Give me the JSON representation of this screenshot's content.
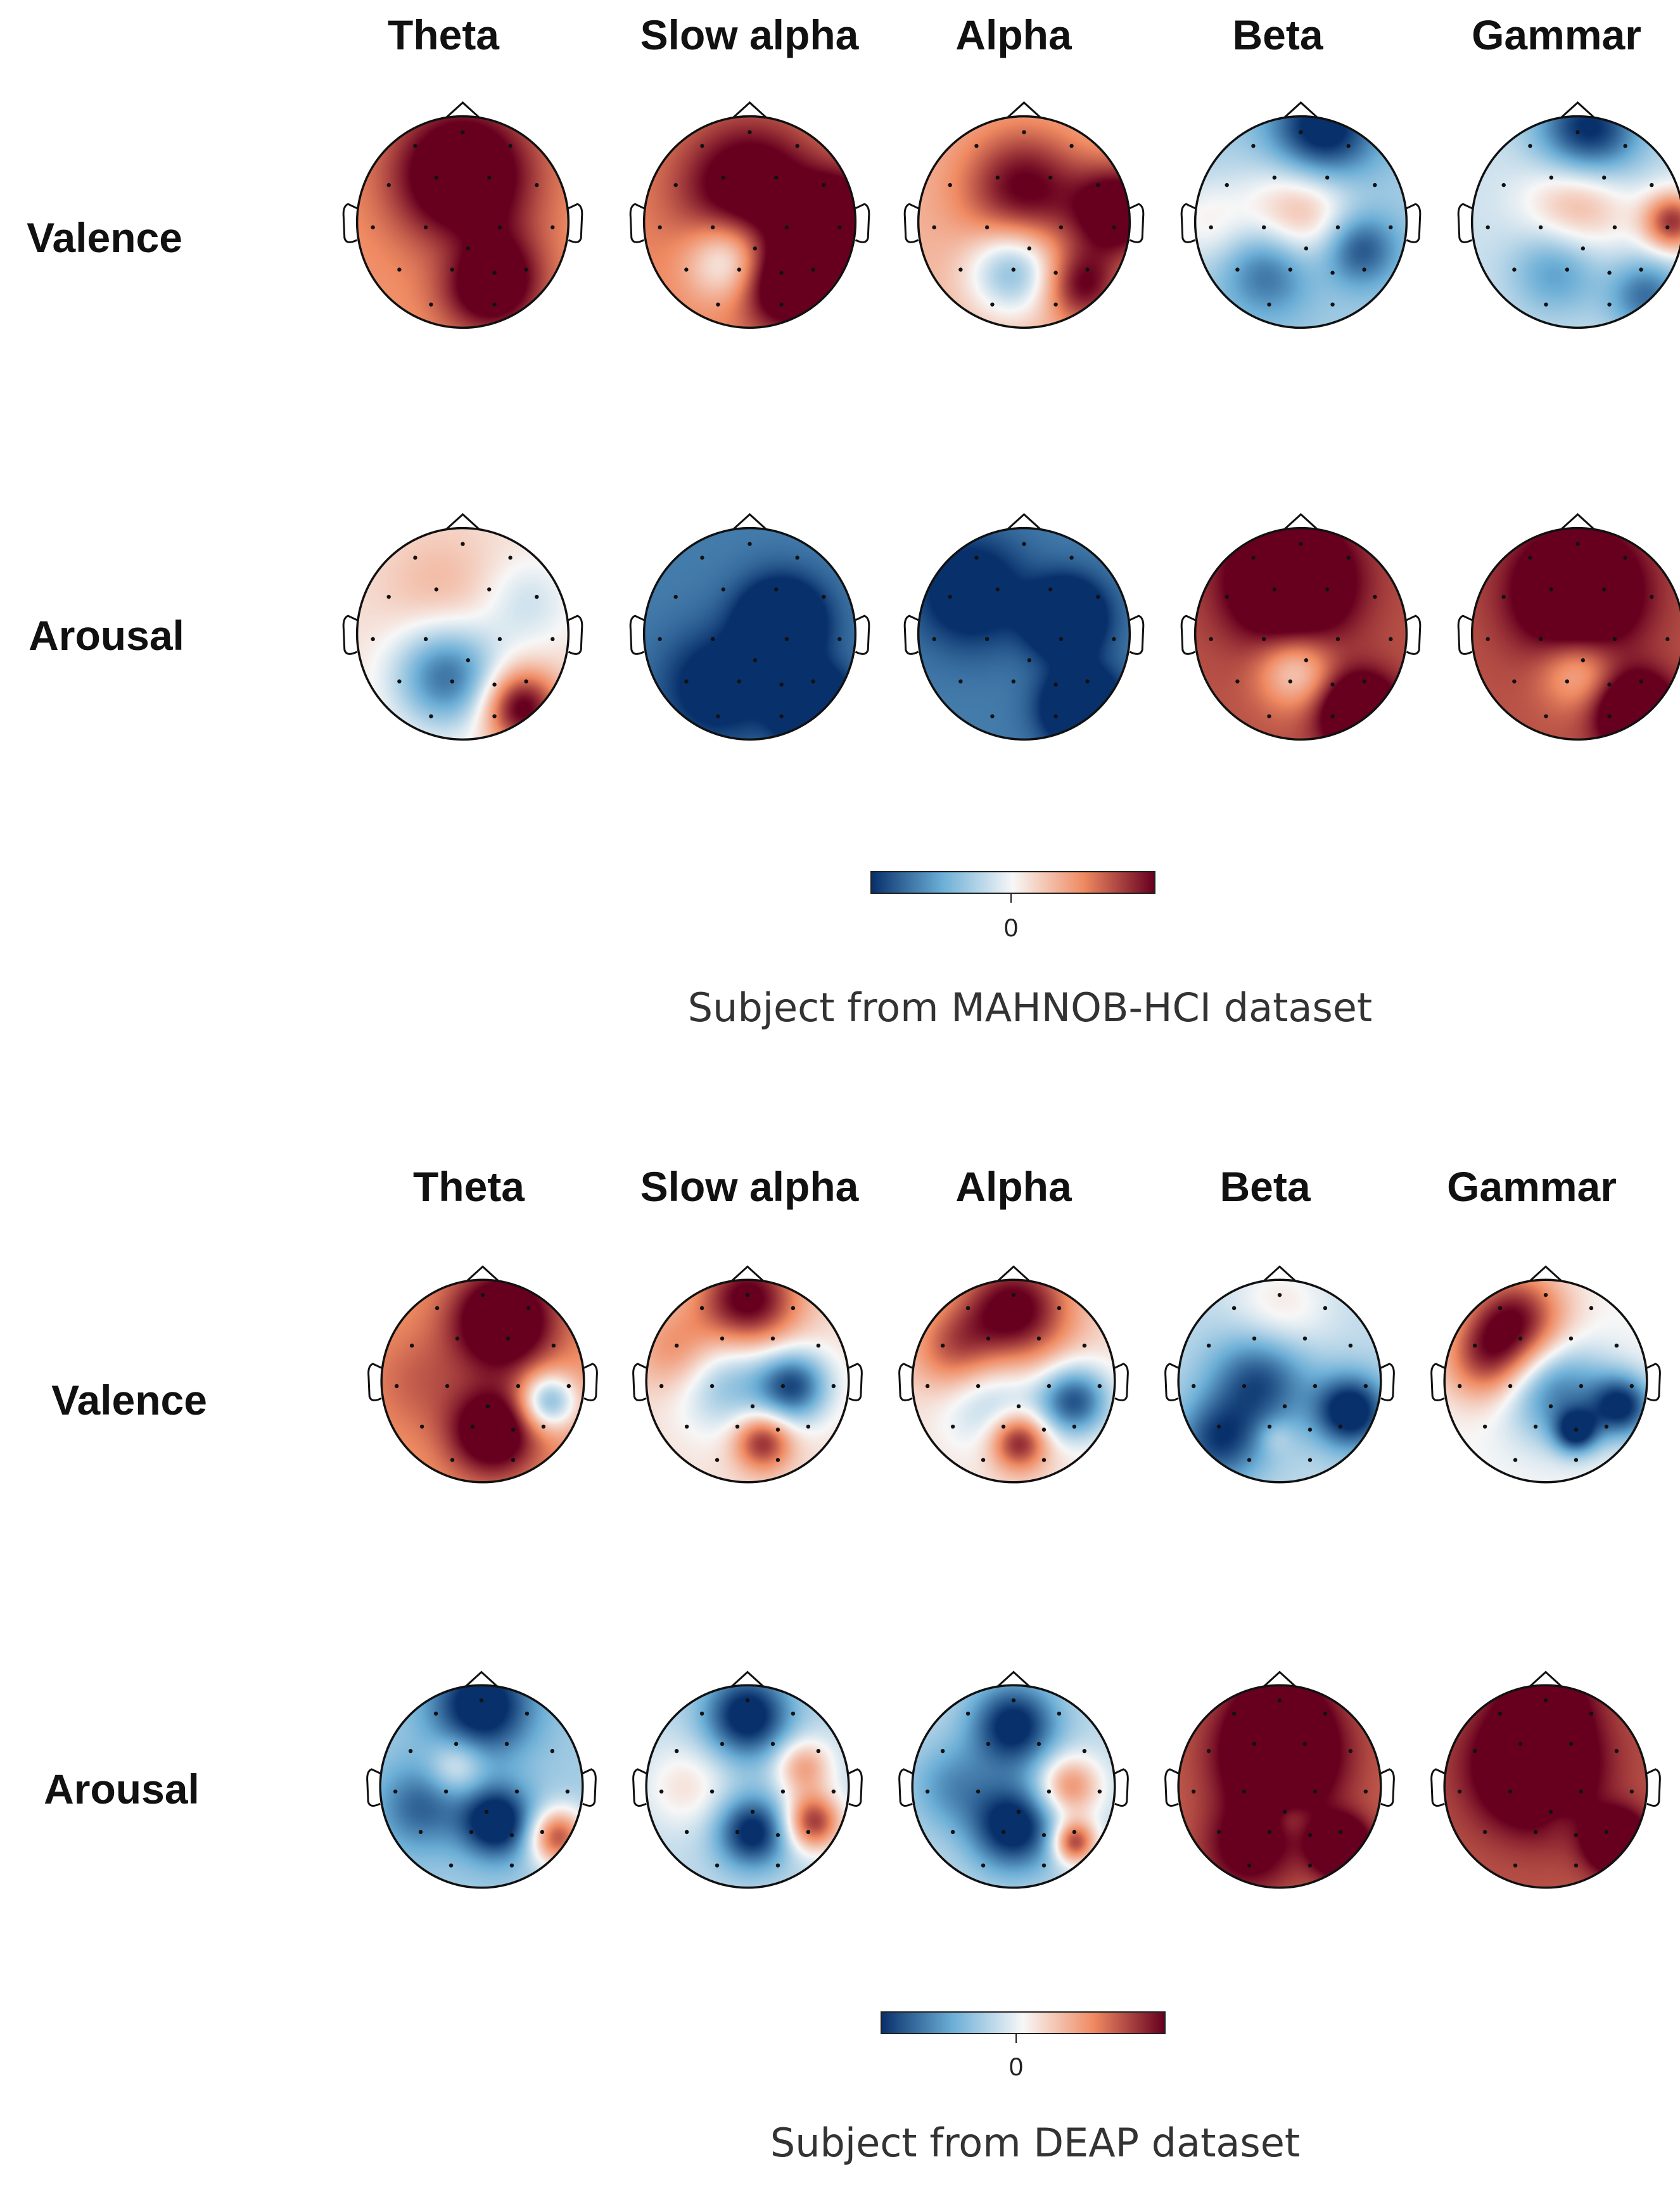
{
  "colormap": {
    "negative": "#08306b",
    "mid_neg": "#6baed6",
    "zero": "#f7f7f7",
    "mid_pos": "#ef8a62",
    "positive": "#67001f"
  },
  "panels": [
    {
      "bands": [
        "Theta",
        "Slow alpha",
        "Alpha",
        "Beta",
        "Gammar"
      ],
      "rows": [
        {
          "label": "Valence",
          "maps": [
            {
              "base": 0.45,
              "blobs": [
                [
                  0.0,
                  -0.45,
                  0.45,
                  1.0
                ],
                [
                  0.25,
                  0.55,
                  0.32,
                  1.0
                ],
                [
                  0.05,
                  0.35,
                  0.28,
                  -0.25
                ]
              ]
            },
            {
              "base": 0.5,
              "blobs": [
                [
                  0.0,
                  -0.3,
                  0.45,
                  0.8
                ],
                [
                  0.85,
                  0.0,
                  0.3,
                  1.0
                ],
                [
                  -0.2,
                  0.35,
                  0.28,
                  -0.7
                ],
                [
                  0.35,
                  0.6,
                  0.3,
                  0.9
                ]
              ]
            },
            {
              "base": 0.3,
              "blobs": [
                [
                  0.0,
                  -0.3,
                  0.4,
                  0.75
                ],
                [
                  -0.1,
                  0.45,
                  0.3,
                  -0.75
                ],
                [
                  0.9,
                  -0.1,
                  0.3,
                  1.0
                ],
                [
                  0.55,
                  0.6,
                  0.25,
                  0.7
                ]
              ]
            },
            {
              "base": -0.3,
              "blobs": [
                [
                  0.0,
                  -0.1,
                  0.38,
                  0.65
                ],
                [
                  0.2,
                  -0.85,
                  0.35,
                  -0.9
                ],
                [
                  -0.3,
                  0.45,
                  0.3,
                  -0.55
                ],
                [
                  0.55,
                  0.25,
                  0.25,
                  -0.65
                ],
                [
                  -0.9,
                  0.0,
                  0.3,
                  0.3
                ]
              ]
            },
            {
              "base": -0.15,
              "blobs": [
                [
                  0.0,
                  -0.2,
                  0.35,
                  0.55
                ],
                [
                  0.1,
                  -0.85,
                  0.35,
                  -0.95
                ],
                [
                  -0.2,
                  0.45,
                  0.3,
                  -0.45
                ],
                [
                  0.9,
                  0.0,
                  0.2,
                  0.95
                ],
                [
                  0.65,
                  0.7,
                  0.25,
                  -0.6
                ]
              ]
            }
          ]
        },
        {
          "label": "Arousal",
          "maps": [
            {
              "base": 0.1,
              "blobs": [
                [
                  -0.15,
                  0.4,
                  0.35,
                  -0.85
                ],
                [
                  0.55,
                  0.7,
                  0.25,
                  1.0
                ],
                [
                  0.6,
                  -0.3,
                  0.3,
                  -0.25
                ],
                [
                  -0.2,
                  -0.4,
                  0.4,
                  0.2
                ]
              ]
            },
            {
              "base": -0.7,
              "blobs": [
                [
                  0.3,
                  -0.1,
                  0.28,
                  -0.95
                ],
                [
                  0.6,
                  0.7,
                  0.25,
                  -1.0
                ],
                [
                  -0.3,
                  0.5,
                  0.35,
                  -0.5
                ]
              ]
            },
            {
              "base": -0.7,
              "blobs": [
                [
                  0.4,
                  -0.15,
                  0.25,
                  -0.95
                ],
                [
                  0.55,
                  0.7,
                  0.25,
                  -1.0
                ],
                [
                  -0.5,
                  -0.4,
                  0.35,
                  -0.55
                ]
              ]
            },
            {
              "base": 0.7,
              "blobs": [
                [
                  -0.1,
                  -0.5,
                  0.4,
                  1.0
                ],
                [
                  -0.05,
                  0.35,
                  0.25,
                  -0.55
                ],
                [
                  0.55,
                  0.75,
                  0.25,
                  1.0
                ]
              ]
            },
            {
              "base": 0.7,
              "blobs": [
                [
                  0.0,
                  -0.4,
                  0.4,
                  1.0
                ],
                [
                  0.0,
                  0.35,
                  0.25,
                  -0.45
                ],
                [
                  0.55,
                  0.75,
                  0.25,
                  1.0
                ]
              ]
            }
          ]
        }
      ],
      "colorbar_tick": "0",
      "caption": "Subject from MAHNOB-HCI dataset"
    },
    {
      "bands": [
        "Theta",
        "Slow alpha",
        "Alpha",
        "Beta",
        "Gammar"
      ],
      "rows": [
        {
          "label": "Valence",
          "maps": [
            {
              "base": 0.45,
              "blobs": [
                [
                  0.2,
                  -0.6,
                  0.35,
                  1.0
                ],
                [
                  0.1,
                  0.5,
                  0.3,
                  0.9
                ],
                [
                  0.65,
                  0.2,
                  0.2,
                  -0.9
                ],
                [
                  -0.6,
                  0.0,
                  0.35,
                  0.2
                ]
              ]
            },
            {
              "base": 0.1,
              "blobs": [
                [
                  0.0,
                  -0.8,
                  0.35,
                  1.0
                ],
                [
                  -0.2,
                  0.0,
                  0.35,
                  -0.5
                ],
                [
                  0.45,
                  0.05,
                  0.25,
                  -0.95
                ],
                [
                  0.15,
                  0.6,
                  0.2,
                  0.8
                ],
                [
                  -0.7,
                  -0.3,
                  0.3,
                  0.4
                ]
              ]
            },
            {
              "base": 0.1,
              "blobs": [
                [
                  0.0,
                  -0.7,
                  0.4,
                  1.0
                ],
                [
                  -0.2,
                  0.2,
                  0.35,
                  -0.4
                ],
                [
                  0.6,
                  0.2,
                  0.25,
                  -0.95
                ],
                [
                  0.05,
                  0.6,
                  0.2,
                  0.9
                ],
                [
                  -0.6,
                  -0.3,
                  0.3,
                  0.5
                ]
              ]
            },
            {
              "base": -0.2,
              "blobs": [
                [
                  0.0,
                  -0.7,
                  0.35,
                  0.3
                ],
                [
                  -0.2,
                  0.0,
                  0.35,
                  -0.7
                ],
                [
                  0.7,
                  0.3,
                  0.25,
                  -1.0
                ],
                [
                  -0.05,
                  0.55,
                  0.12,
                  0.2
                ],
                [
                  -0.6,
                  0.6,
                  0.3,
                  -0.7
                ]
              ]
            },
            {
              "base": 0.0,
              "blobs": [
                [
                  -0.3,
                  -0.6,
                  0.35,
                  0.95
                ],
                [
                  0.1,
                  0.1,
                  0.35,
                  -0.7
                ],
                [
                  0.75,
                  0.25,
                  0.22,
                  -1.0
                ],
                [
                  -0.6,
                  -0.2,
                  0.3,
                  0.6
                ],
                [
                  0.3,
                  0.5,
                  0.15,
                  -0.9
                ]
              ]
            }
          ]
        },
        {
          "label": "Arousal",
          "maps": [
            {
              "base": -0.3,
              "blobs": [
                [
                  0.0,
                  -0.8,
                  0.35,
                  -0.9
                ],
                [
                  -0.25,
                  -0.2,
                  0.2,
                  0.4
                ],
                [
                  0.15,
                  0.35,
                  0.25,
                  -0.95
                ],
                [
                  0.75,
                  0.5,
                  0.2,
                  1.0
                ],
                [
                  -0.6,
                  0.2,
                  0.3,
                  -0.5
                ]
              ]
            },
            {
              "base": -0.2,
              "blobs": [
                [
                  0.0,
                  -0.7,
                  0.3,
                  -0.95
                ],
                [
                  -0.6,
                  0.0,
                  0.3,
                  0.3
                ],
                [
                  0.05,
                  0.45,
                  0.25,
                  -0.9
                ],
                [
                  0.65,
                  0.35,
                  0.2,
                  1.0
                ],
                [
                  0.55,
                  -0.2,
                  0.2,
                  0.6
                ]
              ]
            },
            {
              "base": -0.2,
              "blobs": [
                [
                  0.0,
                  -0.6,
                  0.3,
                  -0.9
                ],
                [
                  0.0,
                  0.4,
                  0.3,
                  -0.95
                ],
                [
                  0.55,
                  0.0,
                  0.22,
                  0.7
                ],
                [
                  0.6,
                  0.55,
                  0.15,
                  1.0
                ],
                [
                  -0.6,
                  0.0,
                  0.3,
                  -0.4
                ]
              ]
            },
            {
              "base": 0.65,
              "blobs": [
                [
                  0.0,
                  -0.3,
                  0.4,
                  1.0
                ],
                [
                  0.1,
                  0.3,
                  0.13,
                  -0.2
                ],
                [
                  0.6,
                  0.6,
                  0.2,
                  1.0
                ],
                [
                  -0.3,
                  0.6,
                  0.3,
                  0.5
                ],
                [
                  0.0,
                  -0.8,
                  0.3,
                  0.4
                ]
              ]
            },
            {
              "base": 0.7,
              "blobs": [
                [
                  -0.1,
                  -0.2,
                  0.4,
                  1.0
                ],
                [
                  0.1,
                  0.3,
                  0.13,
                  -0.1
                ],
                [
                  0.7,
                  0.55,
                  0.2,
                  1.0
                ],
                [
                  0.0,
                  -0.85,
                  0.3,
                  0.45
                ]
              ]
            }
          ]
        }
      ],
      "colorbar_tick": "0",
      "caption": "Subject from DEAP dataset"
    }
  ]
}
